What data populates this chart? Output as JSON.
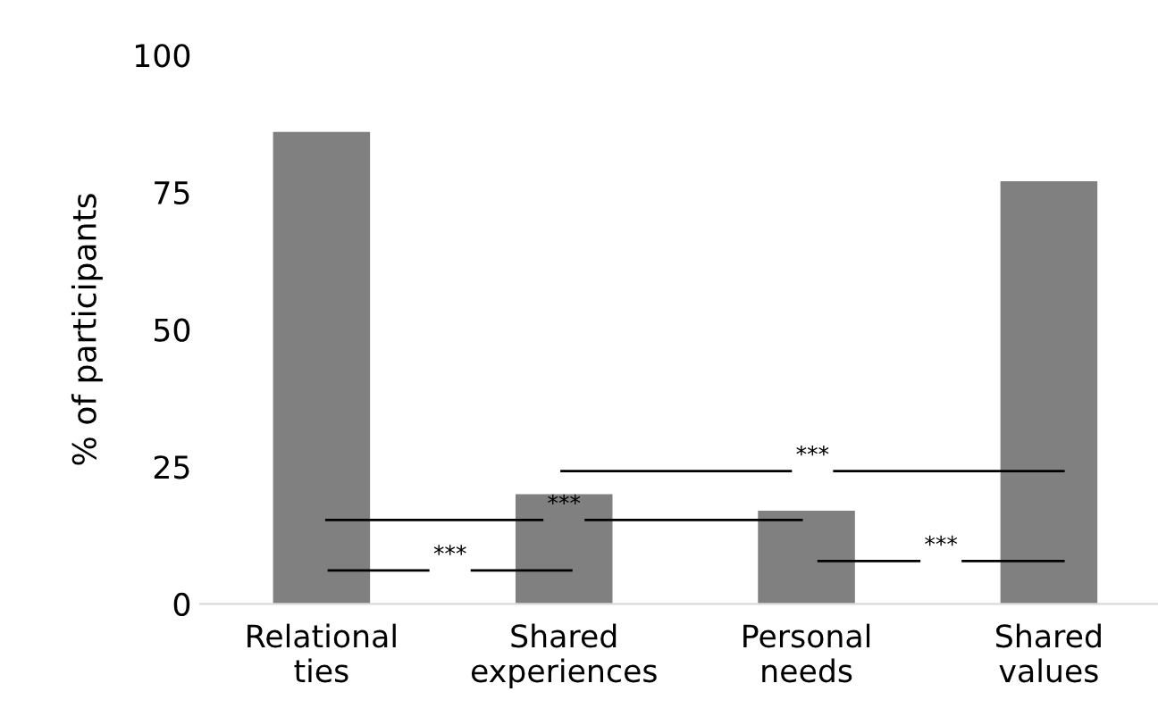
{
  "chart_data": {
    "type": "bar",
    "ylabel": "% of participants",
    "categories": [
      "Relational\nties",
      "Shared\nexperiences",
      "Personal\nneeds",
      "Shared\nvalues"
    ],
    "values": [
      86,
      20,
      17,
      77
    ],
    "color": "#808080",
    "ylim": [
      0,
      100
    ],
    "yticks": [
      0,
      25,
      50,
      75,
      100
    ],
    "grid": false,
    "annotations": [
      "***",
      "***",
      "***",
      "***"
    ]
  }
}
